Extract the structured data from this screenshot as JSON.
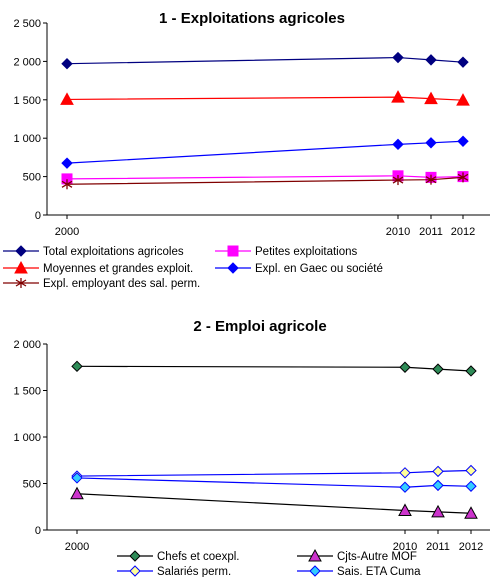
{
  "chart_data": [
    {
      "type": "line",
      "title": "1 - Exploitations agricoles",
      "xlabel": "",
      "ylabel": "",
      "x": [
        "2000",
        "2010",
        "2011",
        "2012"
      ],
      "ylim": [
        0,
        2500
      ],
      "yticks": [
        "0",
        "500",
        "1 000",
        "1 500",
        "2 000",
        "2 500"
      ],
      "grid": false,
      "legend_position": "bottom",
      "series": [
        {
          "name": "Total exploitations agricoles",
          "values": [
            1970,
            2050,
            2020,
            1990
          ],
          "color": "#000080",
          "marker": "diamond"
        },
        {
          "name": "Petites exploitations",
          "values": [
            470,
            510,
            490,
            500
          ],
          "color": "#ff00ff",
          "marker": "square"
        },
        {
          "name": "Moyennes et grandes exploit.",
          "values": [
            1505,
            1535,
            1515,
            1495
          ],
          "color": "#ff0000",
          "marker": "triangle"
        },
        {
          "name": "Expl. en Gaec ou société",
          "values": [
            675,
            920,
            940,
            960
          ],
          "color": "#0000ff",
          "marker": "diamond"
        },
        {
          "name": "Expl. employant des sal. perm.",
          "values": [
            400,
            455,
            460,
            490
          ],
          "color": "#800000",
          "marker": "asterisk"
        }
      ]
    },
    {
      "type": "line",
      "title": "2 - Emploi agricole",
      "xlabel": "",
      "ylabel": "",
      "x": [
        "2000",
        "2010",
        "2011",
        "2012"
      ],
      "ylim": [
        0,
        2000
      ],
      "yticks": [
        "0",
        "500",
        "1 000",
        "1 500",
        "2 000"
      ],
      "grid": false,
      "legend_position": "bottom",
      "series": [
        {
          "name": "Chefs et coexpl.",
          "values": [
            1760,
            1750,
            1730,
            1710
          ],
          "color": "#000000",
          "marker": "diamond",
          "fill": "#2e8b57"
        },
        {
          "name": "Cjts-Autre MOF",
          "values": [
            390,
            210,
            195,
            180
          ],
          "color": "#000000",
          "marker": "triangle",
          "fill": "#cc33cc"
        },
        {
          "name": "Salariés perm.",
          "values": [
            580,
            615,
            630,
            640
          ],
          "color": "#0000ff",
          "marker": "diamond",
          "fill": "#ffff99"
        },
        {
          "name": "Sais. ETA Cuma",
          "values": [
            560,
            460,
            480,
            470
          ],
          "color": "#0000ff",
          "marker": "diamond",
          "fill": "#33ccff"
        }
      ]
    }
  ]
}
